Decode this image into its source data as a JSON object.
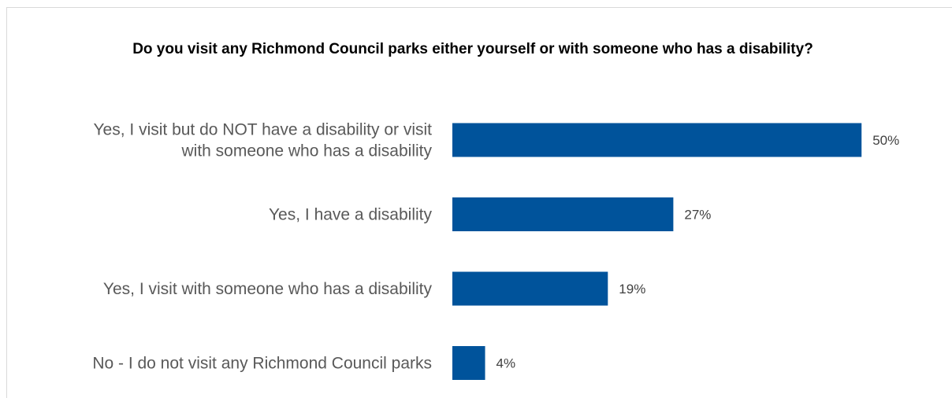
{
  "chart_data": {
    "type": "bar",
    "orientation": "horizontal",
    "title": "Do you visit any Richmond Council parks either yourself or with someone who has a disability?",
    "categories": [
      [
        "Yes, I visit but do NOT have a disability or visit",
        "with someone who has a disability"
      ],
      [
        "Yes, I have a disability"
      ],
      [
        "Yes, I visit with someone who has a disability"
      ],
      [
        "No - I do not visit any Richmond Council parks"
      ]
    ],
    "values": [
      50,
      27,
      19,
      4
    ],
    "value_labels": [
      "50%",
      "27%",
      "19%",
      "4%"
    ],
    "unit": "%",
    "xlim": [
      0,
      52
    ],
    "bar_color": "#00539B",
    "grid": false,
    "legend": "none",
    "xlabel": "",
    "ylabel": ""
  }
}
